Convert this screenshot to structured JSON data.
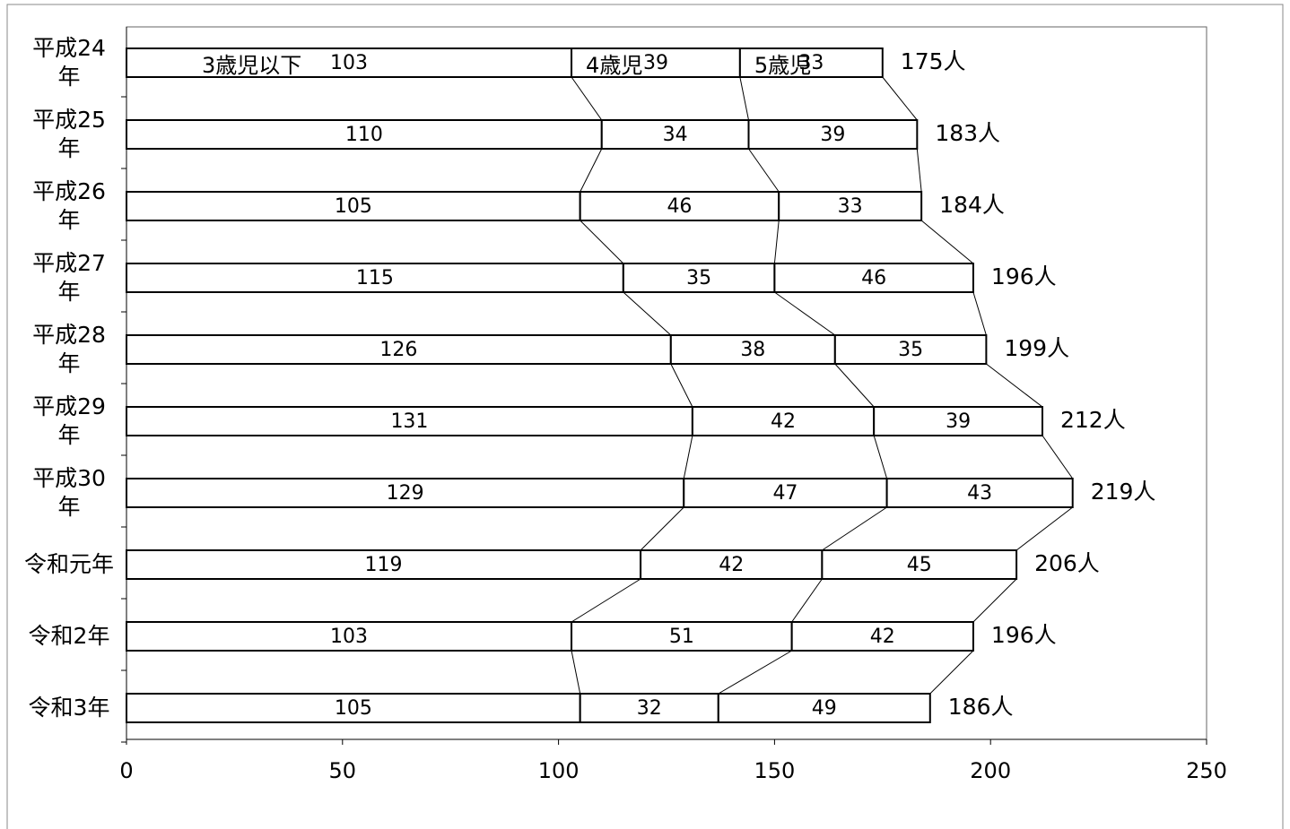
{
  "chart_data": {
    "type": "stacked-barh",
    "categories": [
      "平成24年",
      "平成25年",
      "平成26年",
      "平成27年",
      "平成28年",
      "平成29年",
      "平成30年",
      "令和元年",
      "令和2年",
      "令和3年"
    ],
    "series": [
      {
        "name": "3歳児以下",
        "color": "#ffffff",
        "values": [
          103,
          110,
          105,
          115,
          126,
          131,
          129,
          119,
          103,
          105
        ]
      },
      {
        "name": "4歳児",
        "color": "#ffffff",
        "values": [
          39,
          34,
          46,
          35,
          38,
          42,
          47,
          42,
          51,
          32
        ]
      },
      {
        "name": "5歳児",
        "color": "#ffffff",
        "values": [
          33,
          39,
          33,
          46,
          35,
          39,
          43,
          45,
          42,
          49
        ]
      }
    ],
    "totals": {
      "values": [
        175,
        183,
        184,
        196,
        199,
        212,
        219,
        206,
        196,
        186
      ],
      "value_labels": [
        "175人",
        "183人",
        "184人",
        "196人",
        "199人",
        "212人",
        "219人",
        "206人",
        "196人",
        "186人"
      ]
    },
    "xlim": [
      0,
      250
    ],
    "xticks": [
      0,
      50,
      100,
      150,
      200,
      250
    ],
    "series_lines": true,
    "grid": false
  }
}
